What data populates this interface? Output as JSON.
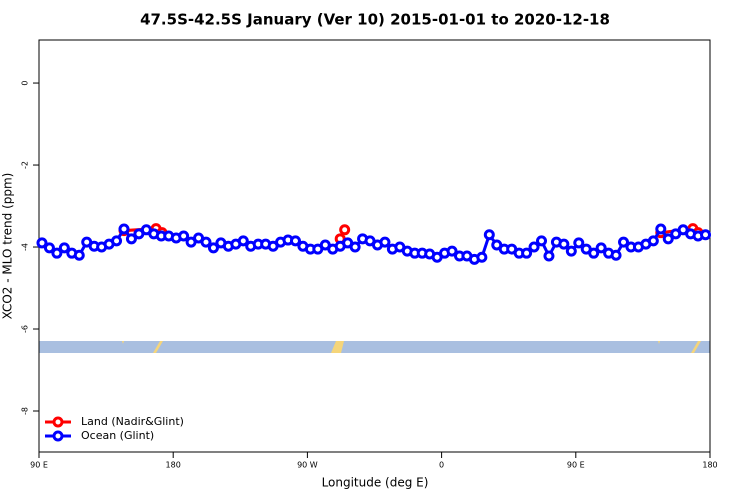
{
  "chart_data": {
    "type": "line",
    "title": "47.5S-42.5S January (Ver 10)   2015-01-01 to 2020-12-18",
    "xlabel": "Longitude (deg E)",
    "ylabel": "XCO2 - MLO trend (ppm)",
    "xlim": [
      90,
      540
    ],
    "ylim": [
      -9,
      1.05
    ],
    "xticks": [
      {
        "value": 90,
        "label": "90 E"
      },
      180,
      {
        "value": 270,
        "label": "90 W"
      },
      {
        "value": 360,
        "label": "0"
      },
      {
        "value": 450,
        "label": "90 E"
      },
      {
        "value": 540,
        "label": "180"
      }
    ],
    "yticks": [
      0,
      -2,
      -4,
      -6,
      -8
    ],
    "legend": "bottom-left",
    "series": [
      {
        "name": "Land (Nadir&Glint)",
        "color": "#ff0000",
        "x": [
          147,
          168.5,
          172.5,
          232,
          292,
          295,
          402,
          507,
          528.5,
          532
        ],
        "values": [
          -3.6,
          -3.55,
          -3.65,
          null,
          -3.8,
          -3.58,
          null,
          -3.65,
          -3.55,
          -3.65
        ]
      },
      {
        "name": "Ocean (Glint)",
        "color": "#0000ff",
        "x": [
          92,
          97,
          102,
          107,
          112,
          117,
          122,
          127,
          132,
          137,
          142,
          147,
          152,
          157,
          162,
          167,
          172,
          177,
          182,
          187,
          192,
          197,
          202,
          207,
          212,
          217,
          222,
          227,
          232,
          237,
          242,
          247,
          252,
          257,
          262,
          267,
          272,
          277,
          282,
          287,
          292,
          297,
          302,
          307,
          312,
          317,
          322,
          327,
          332,
          337,
          342,
          347,
          352,
          357,
          362,
          367,
          372,
          377,
          382,
          387,
          392,
          397,
          402,
          407,
          412,
          417,
          422,
          427,
          432,
          437,
          442,
          447,
          452,
          457,
          462,
          467,
          472,
          477,
          482,
          487,
          492,
          497,
          502,
          507,
          512,
          517,
          522,
          527,
          532,
          537
        ],
        "values": [
          -3.9,
          -4.02,
          -4.15,
          -4.02,
          -4.15,
          -4.2,
          -3.88,
          -3.98,
          -4.0,
          -3.93,
          -3.85,
          -3.56,
          -3.8,
          -3.68,
          -3.58,
          -3.68,
          -3.73,
          -3.73,
          -3.78,
          -3.73,
          -3.88,
          -3.78,
          -3.88,
          -4.02,
          -3.9,
          -3.98,
          -3.93,
          -3.85,
          -3.98,
          -3.93,
          -3.93,
          -3.98,
          -3.88,
          -3.83,
          -3.85,
          -3.98,
          -4.05,
          -4.05,
          -3.95,
          -4.05,
          -3.98,
          -3.9,
          -4.0,
          -3.8,
          -3.85,
          -3.95,
          -3.88,
          -4.05,
          -4.0,
          -4.1,
          -4.15,
          -4.15,
          -4.17,
          -4.25,
          -4.15,
          -4.1,
          -4.22,
          -4.22,
          -4.3,
          -4.25,
          -3.7,
          -3.95,
          -4.05,
          -4.05,
          -4.15,
          -4.15,
          -4.0,
          -3.85,
          -4.22,
          -3.88,
          -3.93,
          -4.1,
          -3.9,
          -4.05,
          -4.15,
          -4.02,
          -4.15,
          -4.2,
          -3.88,
          -4.0,
          -4.0,
          -3.93,
          -3.85,
          -3.56,
          -3.8,
          -3.68,
          -3.58,
          -3.68,
          -3.73,
          -3.7
        ]
      }
    ]
  }
}
